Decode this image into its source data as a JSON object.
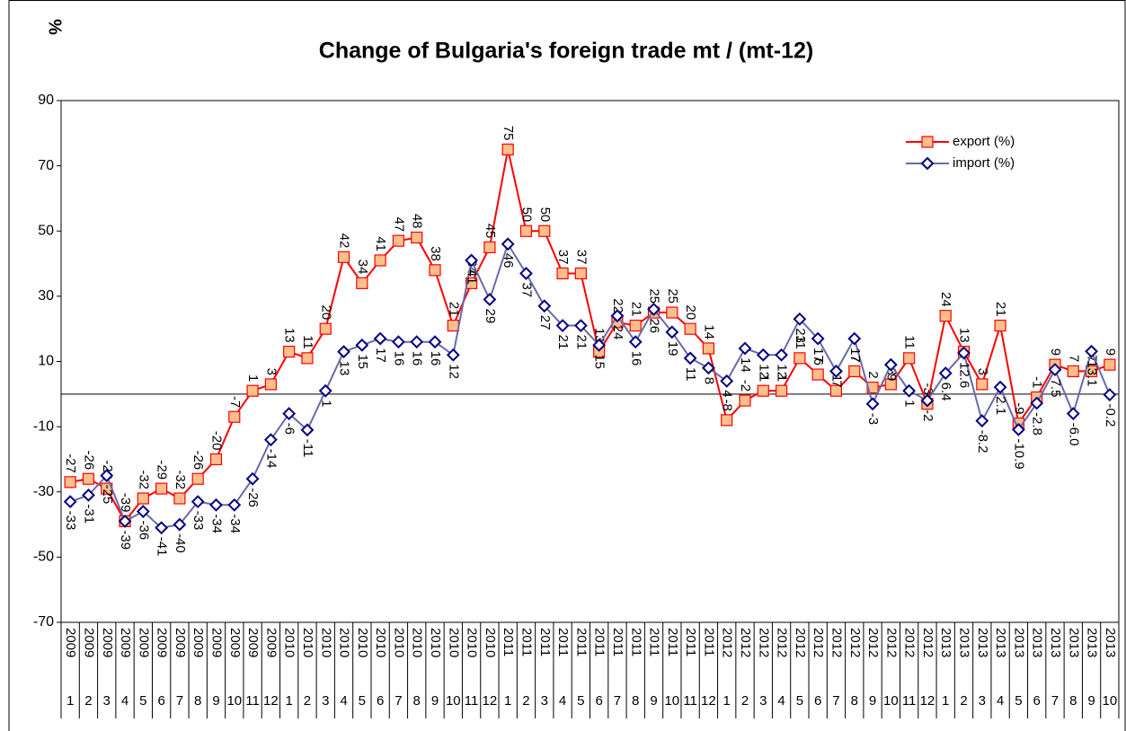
{
  "chart_data": {
    "type": "line",
    "title": "Change of Bulgaria's foreign trade mt / (mt-12)",
    "y_label": "%",
    "years": [
      "2009",
      "2009",
      "2009",
      "2009",
      "2009",
      "2009",
      "2009",
      "2009",
      "2009",
      "2009",
      "2009",
      "2009",
      "2010",
      "2010",
      "2010",
      "2010",
      "2010",
      "2010",
      "2010",
      "2010",
      "2010",
      "2010",
      "2010",
      "2010",
      "2011",
      "2011",
      "2011",
      "2011",
      "2011",
      "2011",
      "2011",
      "2011",
      "2011",
      "2011",
      "2011",
      "2011",
      "2012",
      "2012",
      "2012",
      "2012",
      "2012",
      "2012",
      "2012",
      "2012",
      "2012",
      "2012",
      "2012",
      "2012",
      "2013",
      "2013",
      "2013",
      "2013",
      "2013",
      "2013",
      "2013",
      "2013",
      "2013",
      "2013"
    ],
    "categories": [
      "1",
      "2",
      "3",
      "4",
      "5",
      "6",
      "7",
      "8",
      "9",
      "10",
      "11",
      "12",
      "1",
      "2",
      "3",
      "4",
      "5",
      "6",
      "7",
      "8",
      "9",
      "10",
      "11",
      "12",
      "1",
      "2",
      "3",
      "4",
      "5",
      "6",
      "7",
      "8",
      "9",
      "10",
      "11",
      "12",
      "1",
      "2",
      "3",
      "4",
      "5",
      "6",
      "7",
      "8",
      "9",
      "10",
      "11",
      "12",
      "1",
      "2",
      "3",
      "4",
      "5",
      "6",
      "7",
      "8",
      "9",
      "10"
    ],
    "series": [
      {
        "name": "export (%)",
        "color": "#ff0000",
        "marker_fill": "#fbbf8c",
        "marker": "square",
        "values": [
          -27,
          -26,
          -29,
          -39,
          -32,
          -29,
          -32,
          -26,
          -20,
          -7,
          1,
          3,
          13,
          11,
          20,
          42,
          34,
          41,
          47,
          48,
          38,
          21,
          34,
          45,
          75,
          50,
          50,
          37,
          37,
          13,
          22,
          21,
          25,
          25,
          20,
          14,
          -8,
          -2,
          1,
          1,
          11,
          6,
          1,
          7,
          2,
          3,
          11,
          -3,
          24,
          13,
          3,
          21,
          -9,
          -1,
          9,
          7,
          7,
          9
        ]
      },
      {
        "name": "import (%)",
        "color": "#6a6aa8",
        "marker_stroke": "#000080",
        "marker_fill": "#ffffff",
        "marker": "diamond",
        "values": [
          -33,
          -31,
          -25,
          -39,
          -36,
          -41,
          -40,
          -33,
          -34,
          -34,
          -26,
          -14,
          -6,
          -11,
          1,
          13,
          15,
          17,
          16,
          16,
          16,
          12,
          41,
          29,
          46,
          37,
          27,
          21,
          21,
          15,
          24,
          16,
          26,
          19,
          11,
          8,
          4,
          14,
          12,
          12,
          23,
          17,
          7,
          17,
          -3,
          9,
          1,
          -2,
          6.4,
          12.6,
          -8.2,
          2.1,
          -10.9,
          -2.8,
          7.5,
          -6.0,
          13.1,
          -0.2
        ],
        "value_labels": [
          "-33",
          "-31",
          "-25",
          "-39",
          "-36",
          "-41",
          "-40",
          "-33",
          "-34",
          "-34",
          "-26",
          "-14",
          "-6",
          "-11",
          "1",
          "13",
          "15",
          "17",
          "16",
          "16",
          "16",
          "12",
          "41",
          "29",
          "46",
          "37",
          "27",
          "21",
          "21",
          "15",
          "24",
          "16",
          "26",
          "19",
          "11",
          "8",
          "4",
          "14",
          "12",
          "12",
          "23",
          "17",
          "7",
          "17",
          "-3",
          "9",
          "1",
          "-2",
          "6.4",
          "12.6",
          "-8.2",
          "2.1",
          "-10.9",
          "-2.8",
          "7.5",
          "-6.0",
          "13.1",
          "-0.2"
        ]
      }
    ],
    "ylim": [
      -70,
      90
    ],
    "yticks": [
      -70,
      -50,
      -30,
      -10,
      10,
      30,
      50,
      70,
      90
    ],
    "grid": false,
    "legend": "upper right"
  }
}
